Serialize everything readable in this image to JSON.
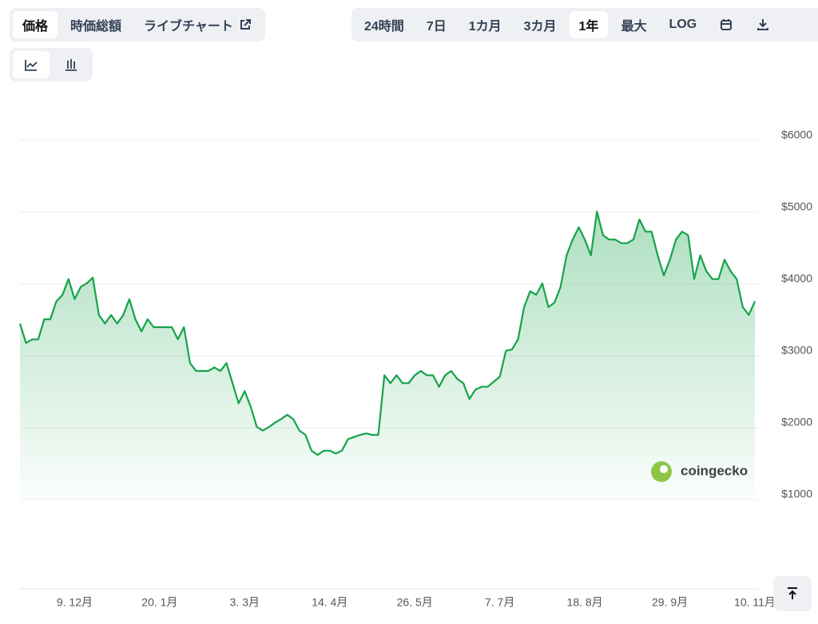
{
  "toolbar": {
    "tabs": [
      "価格",
      "時価総額",
      "ライブチャート"
    ],
    "ranges": [
      "24時間",
      "7日",
      "1カ月",
      "3カ月",
      "1年",
      "最大",
      "LOG"
    ],
    "watermark": "coingecko"
  },
  "chart_data": {
    "type": "line",
    "categories": [
      null,
      null,
      null,
      null,
      null,
      null,
      null,
      null,
      null,
      "9. 12月",
      null,
      null,
      null,
      null,
      null,
      null,
      null,
      null,
      null,
      null,
      null,
      null,
      null,
      "20. 1月",
      null,
      null,
      null,
      null,
      null,
      null,
      null,
      null,
      null,
      null,
      null,
      null,
      null,
      "3. 3月",
      null,
      null,
      null,
      null,
      null,
      null,
      null,
      null,
      null,
      null,
      null,
      null,
      null,
      "14. 4月",
      null,
      null,
      null,
      null,
      null,
      null,
      null,
      null,
      null,
      null,
      null,
      null,
      null,
      "26. 5月",
      null,
      null,
      null,
      null,
      null,
      null,
      null,
      null,
      null,
      null,
      null,
      null,
      null,
      "7. 7月",
      null,
      null,
      null,
      null,
      null,
      null,
      null,
      null,
      null,
      null,
      null,
      null,
      null,
      "18. 8月",
      null,
      null,
      null,
      null,
      null,
      null,
      null,
      null,
      null,
      null,
      null,
      null,
      null,
      "29. 9月",
      null,
      null,
      null,
      null,
      null,
      null,
      null,
      null,
      null,
      null,
      null,
      null,
      null,
      "10. 11月"
    ],
    "series": [
      {
        "color": "#16a34a",
        "values": [
          3450,
          3180,
          3230,
          3230,
          3510,
          3510,
          3760,
          3850,
          4070,
          3790,
          3960,
          4010,
          4090,
          3570,
          3450,
          3570,
          3450,
          3570,
          3790,
          3510,
          3340,
          3510,
          3400,
          3400,
          3400,
          3400,
          3230,
          3400,
          2900,
          2790,
          2790,
          2790,
          2840,
          2790,
          2900,
          2620,
          2340,
          2510,
          2290,
          2010,
          1960,
          2010,
          2070,
          2120,
          2180,
          2120,
          1960,
          1900,
          1680,
          1620,
          1680,
          1680,
          1640,
          1680,
          1840,
          1870,
          1900,
          1920,
          1900,
          1900,
          2730,
          2620,
          2730,
          2620,
          2620,
          2730,
          2790,
          2730,
          2730,
          2570,
          2730,
          2790,
          2680,
          2620,
          2400,
          2530,
          2570,
          2570,
          2640,
          2710,
          3070,
          3090,
          3230,
          3680,
          3900,
          3850,
          4010,
          3680,
          3740,
          3960,
          4400,
          4620,
          4790,
          4620,
          4400,
          5010,
          4680,
          4620,
          4620,
          4570,
          4570,
          4620,
          4900,
          4730,
          4730,
          4400,
          4120,
          4340,
          4620,
          4730,
          4680,
          4070,
          4400,
          4180,
          4070,
          4070,
          4340,
          4180,
          4070,
          3680,
          3570,
          3760
        ]
      }
    ],
    "ylim": [
      1000,
      6000
    ],
    "yticks": [
      {
        "value": 1000,
        "label": "$1000"
      },
      {
        "value": 2000,
        "label": "$2000"
      },
      {
        "value": 3000,
        "label": "$3000"
      },
      {
        "value": 4000,
        "label": "$4000"
      },
      {
        "value": 5000,
        "label": "$5000"
      },
      {
        "value": 6000,
        "label": "$6000"
      }
    ],
    "grid": true
  }
}
